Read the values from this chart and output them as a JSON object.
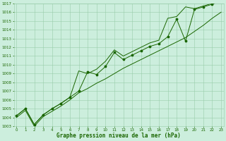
{
  "x": [
    0,
    1,
    2,
    3,
    4,
    5,
    6,
    7,
    8,
    9,
    10,
    11,
    12,
    13,
    14,
    15,
    16,
    17,
    18,
    19,
    20,
    21,
    22,
    23
  ],
  "y_main": [
    1004.2,
    1005.0,
    1003.2,
    1004.3,
    1005.0,
    1005.6,
    1006.3,
    1007.0,
    1009.2,
    1008.9,
    1009.8,
    1011.4,
    1010.6,
    1011.1,
    1011.6,
    1012.1,
    1012.4,
    1013.2,
    1015.2,
    1012.7,
    1016.3,
    1016.6,
    1016.9,
    1017.3
  ],
  "y_upper": [
    1004.2,
    1005.0,
    1003.2,
    1004.3,
    1005.0,
    1005.6,
    1006.3,
    1009.3,
    1009.0,
    1009.5,
    1010.4,
    1011.7,
    1011.0,
    1011.5,
    1012.0,
    1012.5,
    1012.8,
    1015.3,
    1015.5,
    1016.6,
    1016.4,
    1016.7,
    1017.0,
    1017.3
  ],
  "y_lower": [
    1004.0,
    1004.8,
    1003.0,
    1004.1,
    1004.7,
    1005.3,
    1006.0,
    1006.8,
    1007.3,
    1007.9,
    1008.4,
    1009.0,
    1009.6,
    1010.1,
    1010.6,
    1011.1,
    1011.6,
    1012.1,
    1012.6,
    1013.1,
    1013.8,
    1014.5,
    1015.3,
    1016.0
  ],
  "line_color": "#1a6600",
  "bg_color": "#cceedd",
  "grid_color": "#99ccaa",
  "title": "Graphe pression niveau de la mer (hPa)",
  "ylim": [
    1003,
    1017
  ],
  "yticks": [
    1003,
    1004,
    1005,
    1006,
    1007,
    1008,
    1009,
    1010,
    1011,
    1012,
    1013,
    1014,
    1015,
    1016,
    1017
  ],
  "xticks": [
    0,
    1,
    2,
    3,
    4,
    5,
    6,
    7,
    8,
    9,
    10,
    11,
    12,
    13,
    14,
    15,
    16,
    17,
    18,
    19,
    20,
    21,
    22,
    23
  ],
  "tick_fontsize": 4.0,
  "xlabel_fontsize": 5.5
}
